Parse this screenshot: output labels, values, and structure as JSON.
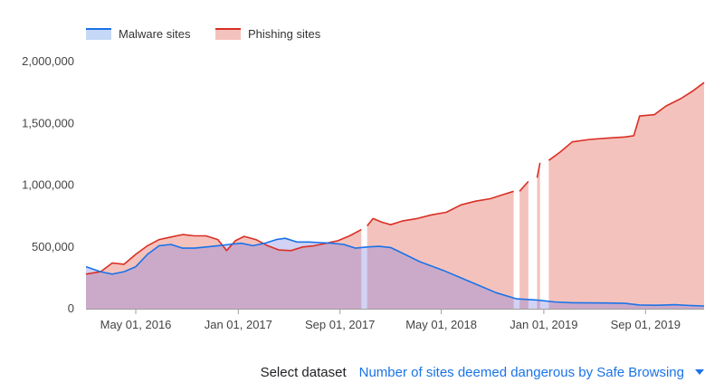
{
  "chart_data": {
    "type": "area",
    "title": "",
    "xlabel": "",
    "ylabel": "",
    "ylim": [
      0,
      2000000
    ],
    "y_ticks": [
      "0",
      "500,000",
      "1,000,000",
      "1,500,000",
      "2,000,000"
    ],
    "y_tick_values": [
      0,
      500000,
      1000000,
      1500000,
      2000000
    ],
    "x_ticks": [
      "May 01, 2016",
      "Jan 01, 2017",
      "Sep 01, 2017",
      "May 01, 2018",
      "Jan 01, 2019",
      "Sep 01, 2019"
    ],
    "x_tick_dates": [
      "2016-05-01",
      "2017-01-01",
      "2017-09-01",
      "2018-05-01",
      "2019-01-01",
      "2019-09-01"
    ],
    "xlim": [
      "2016-01-03",
      "2020-01-19"
    ],
    "grid": false,
    "legend": "top-left",
    "series": [
      {
        "name": "Malware sites",
        "color": "#1a73e8",
        "fill": "#c5d8f7",
        "points": [
          [
            "2016-01-03",
            340000
          ],
          [
            "2016-02-07",
            300000
          ],
          [
            "2016-03-06",
            280000
          ],
          [
            "2016-04-03",
            300000
          ],
          [
            "2016-05-01",
            340000
          ],
          [
            "2016-05-29",
            440000
          ],
          [
            "2016-06-26",
            510000
          ],
          [
            "2016-07-24",
            520000
          ],
          [
            "2016-08-21",
            490000
          ],
          [
            "2016-09-18",
            490000
          ],
          [
            "2016-10-16",
            500000
          ],
          [
            "2016-11-13",
            510000
          ],
          [
            "2016-12-11",
            520000
          ],
          [
            "2017-01-08",
            530000
          ],
          [
            "2017-02-05",
            510000
          ],
          [
            "2017-03-05",
            530000
          ],
          [
            "2017-04-02",
            560000
          ],
          [
            "2017-04-23",
            570000
          ],
          [
            "2017-05-21",
            540000
          ],
          [
            "2017-06-18",
            540000
          ],
          [
            "2017-07-16",
            535000
          ],
          [
            "2017-08-13",
            530000
          ],
          [
            "2017-09-10",
            520000
          ],
          [
            "2017-10-08",
            490000
          ],
          [
            "2017-11-05",
            500000
          ],
          [
            "2017-12-03",
            505000
          ],
          [
            "2017-12-31",
            495000
          ],
          [
            "2018-01-28",
            450000
          ],
          [
            "2018-03-11",
            380000
          ],
          [
            "2018-05-06",
            310000
          ],
          [
            "2018-06-17",
            250000
          ],
          [
            "2018-07-29",
            190000
          ],
          [
            "2018-09-09",
            130000
          ],
          [
            "2018-10-28",
            80000
          ],
          [
            "2018-12-16",
            70000
          ],
          [
            "2019-01-27",
            55000
          ],
          [
            "2019-03-10",
            48000
          ],
          [
            "2019-04-21",
            47000
          ],
          [
            "2019-06-02",
            46000
          ],
          [
            "2019-07-14",
            43000
          ],
          [
            "2019-08-18",
            30000
          ],
          [
            "2019-09-29",
            28000
          ],
          [
            "2019-11-10",
            32000
          ],
          [
            "2019-12-22",
            25000
          ],
          [
            "2020-01-19",
            22000
          ]
        ]
      },
      {
        "name": "Phishing sites",
        "color": "#d93025",
        "fill": "#f4c2bd",
        "segments": [
          [
            [
              "2016-01-03",
              280000
            ],
            [
              "2016-02-07",
              300000
            ],
            [
              "2016-03-06",
              370000
            ],
            [
              "2016-04-03",
              360000
            ],
            [
              "2016-05-01",
              440000
            ],
            [
              "2016-05-29",
              510000
            ],
            [
              "2016-06-26",
              560000
            ],
            [
              "2016-07-24",
              580000
            ],
            [
              "2016-08-21",
              600000
            ],
            [
              "2016-09-18",
              590000
            ],
            [
              "2016-10-16",
              590000
            ],
            [
              "2016-11-13",
              560000
            ],
            [
              "2016-12-04",
              470000
            ],
            [
              "2016-12-25",
              550000
            ],
            [
              "2017-01-15",
              585000
            ],
            [
              "2017-02-12",
              560000
            ],
            [
              "2017-03-12",
              510000
            ],
            [
              "2017-04-09",
              475000
            ],
            [
              "2017-05-07",
              470000
            ],
            [
              "2017-06-04",
              500000
            ],
            [
              "2017-07-02",
              510000
            ],
            [
              "2017-07-30",
              530000
            ],
            [
              "2017-08-27",
              550000
            ],
            [
              "2017-09-24",
              590000
            ],
            [
              "2017-10-22",
              640000
            ]
          ],
          [
            [
              "2017-11-05",
              670000
            ],
            [
              "2017-11-19",
              730000
            ],
            [
              "2017-12-10",
              700000
            ],
            [
              "2017-12-31",
              680000
            ],
            [
              "2018-01-28",
              710000
            ],
            [
              "2018-03-04",
              730000
            ],
            [
              "2018-04-08",
              760000
            ],
            [
              "2018-05-13",
              780000
            ],
            [
              "2018-06-17",
              840000
            ],
            [
              "2018-07-22",
              870000
            ],
            [
              "2018-08-26",
              890000
            ],
            [
              "2018-09-23",
              920000
            ],
            [
              "2018-10-21",
              950000
            ]
          ],
          [
            [
              "2018-11-04",
              950000
            ],
            [
              "2018-11-25",
              1030000
            ]
          ],
          [
            [
              "2018-12-16",
              1060000
            ],
            [
              "2018-12-23",
              1180000
            ]
          ],
          [
            [
              "2019-01-13",
              1200000
            ],
            [
              "2019-02-10",
              1270000
            ],
            [
              "2019-03-10",
              1350000
            ],
            [
              "2019-04-21",
              1370000
            ],
            [
              "2019-06-02",
              1380000
            ],
            [
              "2019-07-14",
              1390000
            ],
            [
              "2019-08-04",
              1400000
            ],
            [
              "2019-08-18",
              1560000
            ],
            [
              "2019-09-22",
              1570000
            ],
            [
              "2019-10-20",
              1640000
            ],
            [
              "2019-11-24",
              1700000
            ],
            [
              "2019-12-22",
              1760000
            ],
            [
              "2020-01-19",
              1830000
            ]
          ]
        ]
      }
    ]
  },
  "dataset_selector": {
    "label": "Select dataset",
    "value": "Number of sites deemed dangerous by Safe Browsing"
  }
}
